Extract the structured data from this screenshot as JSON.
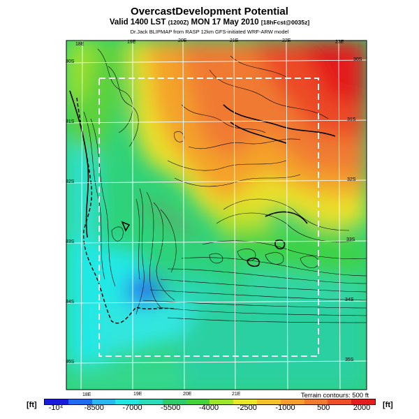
{
  "header": {
    "title": "OvercastDevelopment Potential",
    "valid_prefix": "Valid 1400 LST",
    "valid_utc": "(1200Z)",
    "valid_date": "MON 17 May 2010",
    "forecast_tag": "[18hFcst@0035z]",
    "credit": "Dr.Jack BLIPMAP from RASP 12km GFS-initiated WRF-ARW model"
  },
  "map": {
    "lon_labels": [
      "18E",
      "19E",
      "20E",
      "21E",
      "22E",
      "23E"
    ],
    "lat_labels": [
      "30S",
      "31S",
      "32S",
      "33S",
      "34S",
      "35S"
    ]
  },
  "legend": {
    "terrain_note": "Terrain contours: 500 ft",
    "unit": "[ft]",
    "tick_labels": [
      "-10⁴",
      "-8500",
      "-7000",
      "-5500",
      "-4000",
      "-2500",
      "-1000",
      "500",
      "2000"
    ],
    "colors": [
      "#1a1adc",
      "#1f6cf2",
      "#2ab8f0",
      "#22e6e4",
      "#2bdcb8",
      "#2ecc6a",
      "#44d23a",
      "#9ee62e",
      "#e8e82a",
      "#f4c22a",
      "#f49e2e",
      "#f07a30",
      "#ec5028",
      "#e41e1e"
    ]
  }
}
